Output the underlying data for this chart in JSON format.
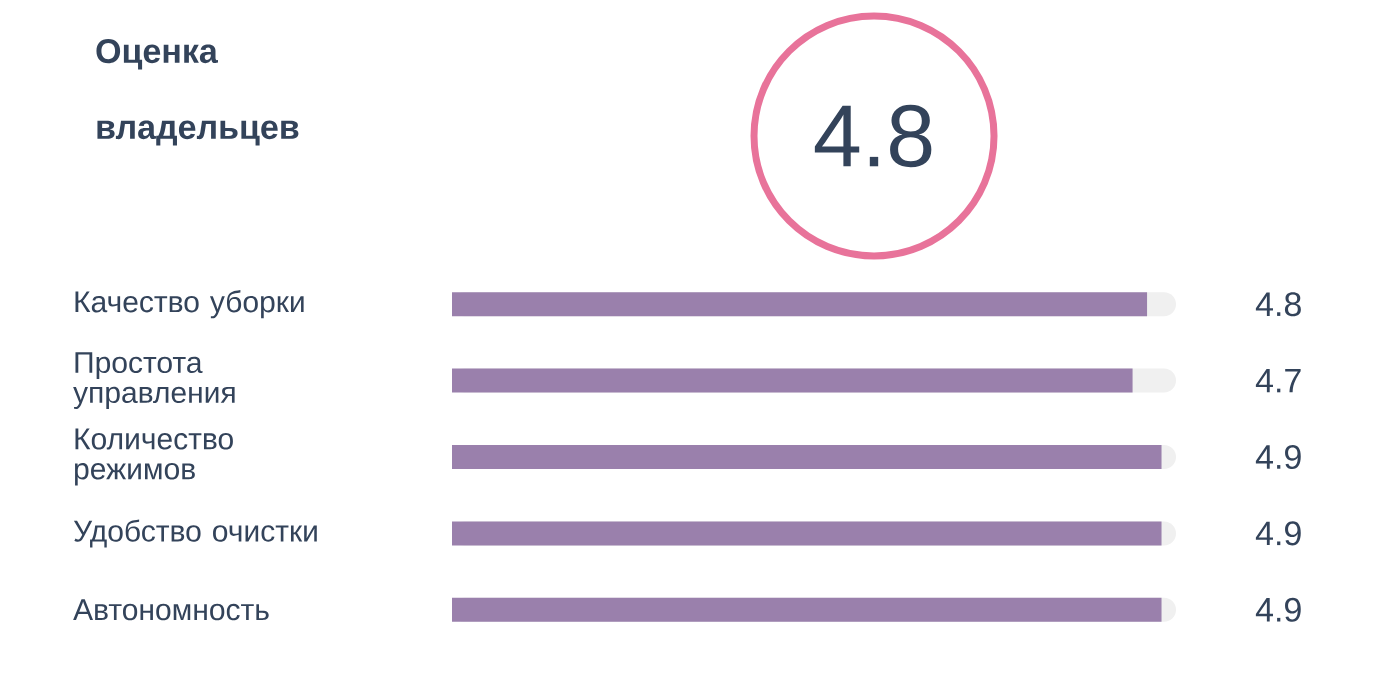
{
  "chart_data": {
    "type": "bar",
    "orientation": "horizontal",
    "title": "Оценка владельцев",
    "annotations": [
      "4.8"
    ],
    "categories": [
      "Качество уборки",
      "Простота управления",
      "Количество режимов",
      "Удобство очистки",
      "Автономность"
    ],
    "values": [
      4.8,
      4.7,
      4.9,
      4.9,
      4.9
    ],
    "color": "#9a80ac",
    "xlim": [
      0,
      5
    ],
    "data_labels": true
  }
}
